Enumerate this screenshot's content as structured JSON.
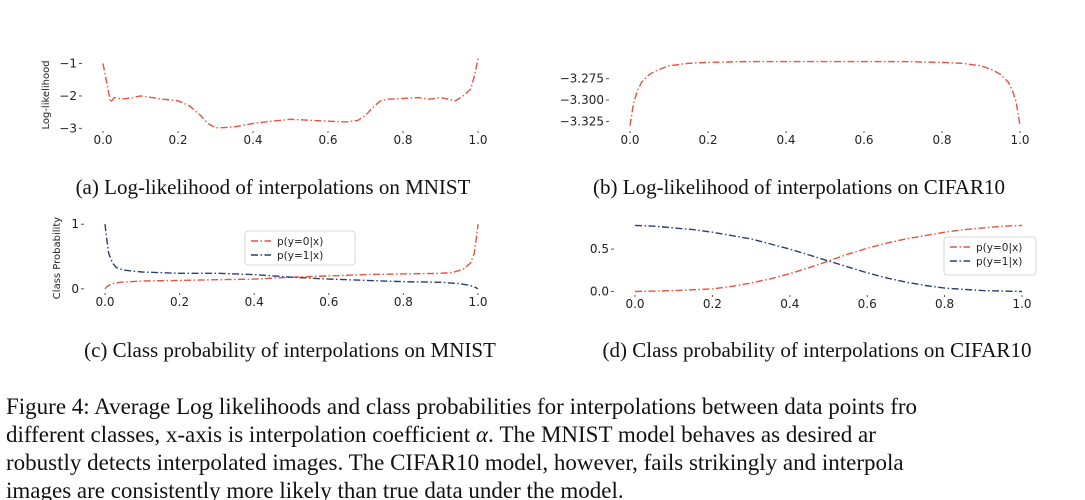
{
  "chart_data": [
    {
      "type": "line",
      "ylabel": "Log-likelihood",
      "xlim": [
        0,
        1
      ],
      "ylim": [
        -3.05,
        -0.8
      ],
      "xticks": [
        "0.0",
        "0.2",
        "0.4",
        "0.6",
        "0.8",
        "1.0"
      ],
      "yticks": [
        {
          "v": -1,
          "label": "−1"
        },
        {
          "v": -2,
          "label": "−2"
        },
        {
          "v": -3,
          "label": "−3"
        }
      ],
      "grid": false,
      "series": [
        {
          "color": "#e8533f",
          "style": "dashdot",
          "x": [
            0.0,
            0.01,
            0.02,
            0.03,
            0.05,
            0.08,
            0.1,
            0.13,
            0.16,
            0.2,
            0.23,
            0.26,
            0.28,
            0.3,
            0.32,
            0.35,
            0.4,
            0.45,
            0.5,
            0.55,
            0.6,
            0.65,
            0.68,
            0.7,
            0.72,
            0.74,
            0.76,
            0.8,
            0.84,
            0.87,
            0.9,
            0.92,
            0.94,
            0.96,
            0.98,
            0.99,
            1.0
          ],
          "y": [
            -1.0,
            -1.6,
            -2.2,
            -2.05,
            -2.1,
            -2.05,
            -2.0,
            -2.05,
            -2.1,
            -2.15,
            -2.3,
            -2.6,
            -2.85,
            -2.98,
            -2.98,
            -2.95,
            -2.85,
            -2.78,
            -2.72,
            -2.75,
            -2.78,
            -2.8,
            -2.75,
            -2.6,
            -2.35,
            -2.15,
            -2.1,
            -2.08,
            -2.05,
            -2.1,
            -2.05,
            -2.1,
            -2.15,
            -2.0,
            -1.8,
            -1.4,
            -0.85
          ]
        }
      ],
      "caption": "(a) Log-likelihood of interpolations on MNIST"
    },
    {
      "type": "line",
      "ylabel": "",
      "xlim": [
        0,
        1
      ],
      "ylim": [
        -3.335,
        -3.252
      ],
      "xticks": [
        "0.0",
        "0.2",
        "0.4",
        "0.6",
        "0.8",
        "1.0"
      ],
      "yticks": [
        {
          "v": -3.275,
          "label": "−3.275"
        },
        {
          "v": -3.3,
          "label": "−3.300"
        },
        {
          "v": -3.325,
          "label": "−3.325"
        }
      ],
      "grid": false,
      "series": [
        {
          "color": "#e8533f",
          "style": "dashdot",
          "x": [
            0.0,
            0.005,
            0.01,
            0.02,
            0.03,
            0.05,
            0.07,
            0.1,
            0.15,
            0.2,
            0.3,
            0.4,
            0.5,
            0.6,
            0.7,
            0.8,
            0.85,
            0.9,
            0.93,
            0.95,
            0.97,
            0.98,
            0.99,
            0.995,
            1.0
          ],
          "y": [
            -3.33,
            -3.315,
            -3.302,
            -3.288,
            -3.279,
            -3.27,
            -3.265,
            -3.26,
            -3.257,
            -3.256,
            -3.255,
            -3.255,
            -3.255,
            -3.255,
            -3.255,
            -3.256,
            -3.257,
            -3.26,
            -3.265,
            -3.27,
            -3.279,
            -3.288,
            -3.302,
            -3.315,
            -3.33
          ]
        }
      ],
      "caption": "(b) Log-likelihood of interpolations on CIFAR10"
    },
    {
      "type": "line",
      "ylabel": "Class Probability",
      "xlim": [
        0,
        1
      ],
      "ylim": [
        -0.05,
        1.05
      ],
      "xticks": [
        "0.0",
        "0.2",
        "0.4",
        "0.6",
        "0.8",
        "1.0"
      ],
      "yticks": [
        {
          "v": 0,
          "label": "0"
        },
        {
          "v": 1,
          "label": "1"
        }
      ],
      "grid": false,
      "legend": {
        "position": "top-center",
        "entries": [
          "p(y=0|x)",
          "p(y=1|x)"
        ]
      },
      "series": [
        {
          "name": "p(y=0|x)",
          "color": "#e8533f",
          "style": "dashdot",
          "x": [
            0.0,
            0.005,
            0.01,
            0.02,
            0.04,
            0.07,
            0.1,
            0.2,
            0.3,
            0.4,
            0.5,
            0.6,
            0.7,
            0.8,
            0.9,
            0.93,
            0.96,
            0.98,
            0.99,
            0.995,
            1.0
          ],
          "y": [
            0.0,
            0.03,
            0.05,
            0.08,
            0.1,
            0.11,
            0.12,
            0.13,
            0.14,
            0.15,
            0.18,
            0.2,
            0.22,
            0.23,
            0.24,
            0.25,
            0.3,
            0.4,
            0.55,
            0.75,
            1.0
          ]
        },
        {
          "name": "p(y=1|x)",
          "color": "#2c3e73",
          "style": "dashdot",
          "x": [
            0.0,
            0.005,
            0.01,
            0.02,
            0.03,
            0.05,
            0.08,
            0.1,
            0.2,
            0.3,
            0.4,
            0.5,
            0.6,
            0.7,
            0.8,
            0.9,
            0.95,
            0.98,
            0.99,
            1.0
          ],
          "y": [
            1.0,
            0.75,
            0.55,
            0.4,
            0.33,
            0.29,
            0.27,
            0.26,
            0.24,
            0.24,
            0.22,
            0.18,
            0.15,
            0.13,
            0.11,
            0.1,
            0.08,
            0.05,
            0.03,
            0.0
          ]
        }
      ],
      "caption": "(c) Class probability of interpolations on MNIST"
    },
    {
      "type": "line",
      "ylabel": "",
      "xlim": [
        0,
        1
      ],
      "ylim": [
        -0.03,
        0.82
      ],
      "xticks": [
        "0.0",
        "0.2",
        "0.4",
        "0.6",
        "0.8",
        "1.0"
      ],
      "yticks": [
        {
          "v": 0,
          "label": "0.0"
        },
        {
          "v": 0.5,
          "label": "0.5"
        }
      ],
      "grid": false,
      "legend": {
        "position": "right",
        "entries": [
          "p(y=0|x)",
          "p(y=1|x)"
        ]
      },
      "series": [
        {
          "name": "p(y=0|x)",
          "color": "#e8533f",
          "style": "dashdot",
          "x": [
            0.0,
            0.1,
            0.2,
            0.25,
            0.3,
            0.35,
            0.4,
            0.45,
            0.5,
            0.55,
            0.6,
            0.65,
            0.7,
            0.75,
            0.8,
            0.85,
            0.9,
            0.95,
            1.0
          ],
          "y": [
            0.0,
            0.01,
            0.03,
            0.06,
            0.1,
            0.15,
            0.21,
            0.28,
            0.36,
            0.44,
            0.51,
            0.57,
            0.62,
            0.66,
            0.7,
            0.73,
            0.75,
            0.77,
            0.78
          ]
        },
        {
          "name": "p(y=1|x)",
          "color": "#2c3e73",
          "style": "dashdot",
          "x": [
            0.0,
            0.05,
            0.1,
            0.15,
            0.2,
            0.25,
            0.3,
            0.35,
            0.4,
            0.45,
            0.5,
            0.55,
            0.6,
            0.65,
            0.7,
            0.75,
            0.8,
            0.9,
            1.0
          ],
          "y": [
            0.78,
            0.77,
            0.75,
            0.73,
            0.7,
            0.66,
            0.62,
            0.56,
            0.5,
            0.43,
            0.36,
            0.29,
            0.22,
            0.16,
            0.11,
            0.07,
            0.04,
            0.01,
            0.0
          ]
        }
      ],
      "caption": "(d) Class probability of interpolations on CIFAR10"
    }
  ],
  "figure_caption": [
    "Figure 4: Average Log likelihoods and class probabilities for interpolations between data points fro",
    "different classes, x-axis is interpolation coefficient α. The MNIST model behaves as desired ar",
    "robustly detects interpolated images. The CIFAR10 model, however, fails strikingly and interpola",
    "images are consistently more likely than true data under the model."
  ]
}
